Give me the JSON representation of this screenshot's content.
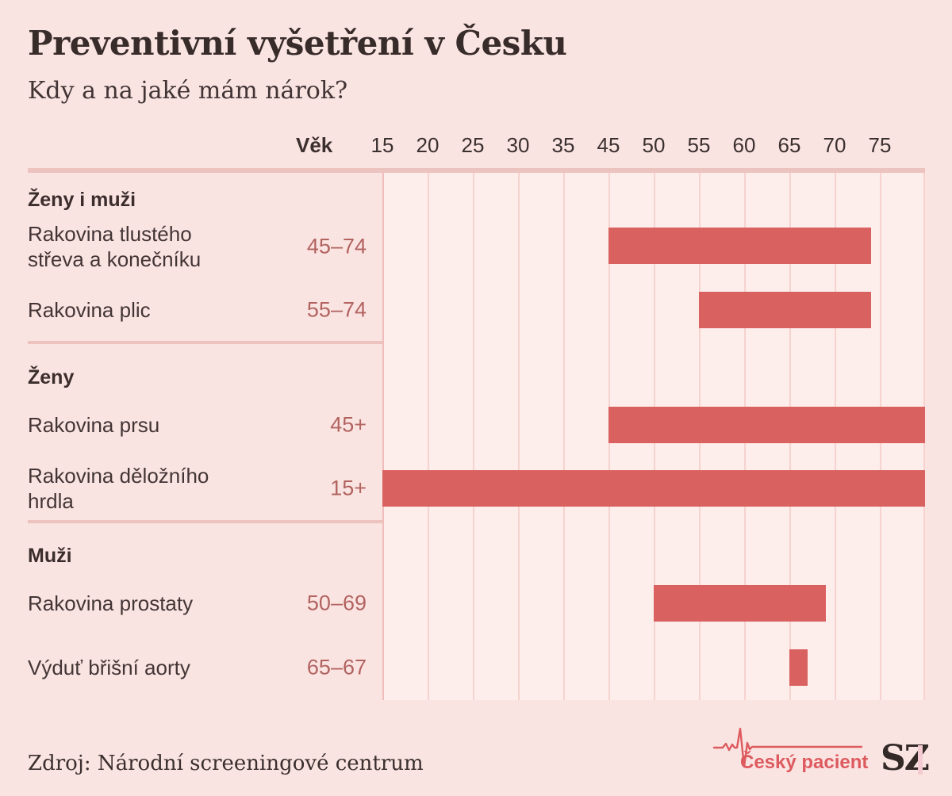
{
  "chart_data": {
    "type": "bar",
    "orientation": "horizontal_range",
    "title": "Preventivní vyšetření v Česku",
    "subtitle": "Kdy a na jaké mám nárok?",
    "x_axis_label": "Věk",
    "x_ticks": [
      15,
      20,
      25,
      30,
      35,
      45,
      50,
      55,
      60,
      65,
      70,
      75
    ],
    "xlim": [
      15,
      80
    ],
    "grid": true,
    "legend": "none",
    "sections": [
      {
        "name": "Ženy i muži",
        "rows": [
          {
            "label_lines": [
              "Rakovina tlustého",
              "střeva a konečníku"
            ],
            "value_label": "45–74",
            "age_start": 45,
            "age_end": 74,
            "open_ended": false
          },
          {
            "label_lines": [
              "Rakovina plic"
            ],
            "value_label": "55–74",
            "age_start": 55,
            "age_end": 74,
            "open_ended": false
          }
        ]
      },
      {
        "name": "Ženy",
        "rows": [
          {
            "label_lines": [
              "Rakovina prsu"
            ],
            "value_label": "45+",
            "age_start": 45,
            "age_end": null,
            "open_ended": true
          },
          {
            "label_lines": [
              "Rakovina děložního",
              "hrdla"
            ],
            "value_label": "15+",
            "age_start": 15,
            "age_end": null,
            "open_ended": true
          }
        ]
      },
      {
        "name": "Muži",
        "rows": [
          {
            "label_lines": [
              "Rakovina prostaty"
            ],
            "value_label": "50–69",
            "age_start": 50,
            "age_end": 69,
            "open_ended": false
          },
          {
            "label_lines": [
              "Výduť břišní aorty"
            ],
            "value_label": "65–67",
            "age_start": 65,
            "age_end": 67,
            "open_ended": false
          }
        ]
      }
    ]
  },
  "footer": {
    "source": "Zdroj: Národní screeningové centrum",
    "logo_label": "Český pacient",
    "brand": "SZ"
  },
  "colors": {
    "page_background": "#fae4e1",
    "plot_background": "#fdedeb",
    "bar": "#d96160",
    "gridline": "#f6d3cf",
    "gridline_strong": "#efbdbb",
    "divider": "#edc3c0",
    "title_text": "#382c2a",
    "label_text": "#433536",
    "value_text": "#b26360",
    "logo_red": "#dd5a5f",
    "brand_dark": "#332a28",
    "brand_pink_bar": "#f4cbd2"
  }
}
